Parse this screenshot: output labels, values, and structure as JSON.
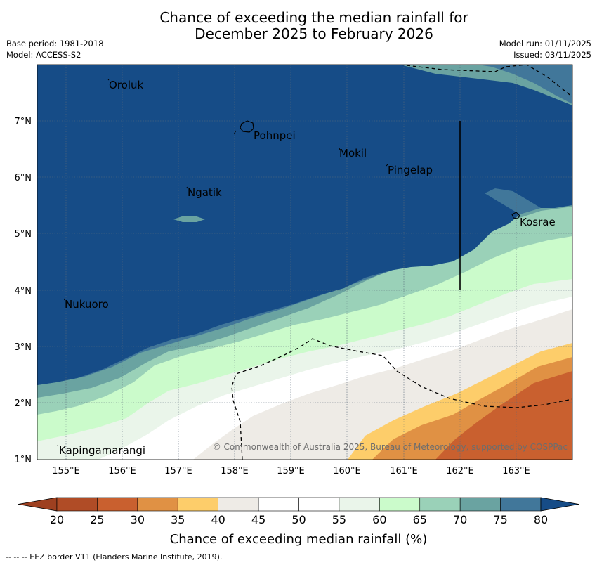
{
  "title": {
    "line1": "Chance of exceeding the median rainfall for",
    "line2": "December 2025 to February 2026"
  },
  "meta": {
    "base_period": "Base period: 1981-2018",
    "model": "Model: ACCESS-S2",
    "model_run": "Model run: 01/11/2025",
    "issued": "Issued: 03/11/2025"
  },
  "map": {
    "lat_labels": [
      "7°N",
      "6°N",
      "5°N",
      "4°N",
      "3°N",
      "2°N",
      "1°N"
    ],
    "lon_labels": [
      "155°E",
      "156°E",
      "157°E",
      "158°E",
      "159°E",
      "160°E",
      "161°E",
      "162°E",
      "163°E"
    ],
    "places": [
      "Oroluk",
      "Pohnpei",
      "Mokil",
      "Pingelap",
      "Ngatik",
      "Kosrae",
      "Nukuoro",
      "Kapingamarangi"
    ],
    "copyright": "© Commonwealth of Australia 2025, Bureau of Meteorology, supported by COSPPac"
  },
  "colorbar": {
    "ticks": [
      "20",
      "25",
      "30",
      "35",
      "40",
      "45",
      "50",
      "55",
      "60",
      "65",
      "70",
      "75",
      "80"
    ],
    "colors": [
      "#9e4020",
      "#b04c26",
      "#c9602f",
      "#e09144",
      "#fdcd6a",
      "#eeebe6",
      "#ffffff",
      "#ffffff",
      "#eaf5ea",
      "#cbfbcb",
      "#9ad1b8",
      "#6aa3a1",
      "#41779a",
      "#164c87"
    ],
    "label": "Chance of exceeding median rainfall (%)"
  },
  "footnote": "--  --  -- EEZ border V11 (Flanders Marine Institute, 2019)."
}
